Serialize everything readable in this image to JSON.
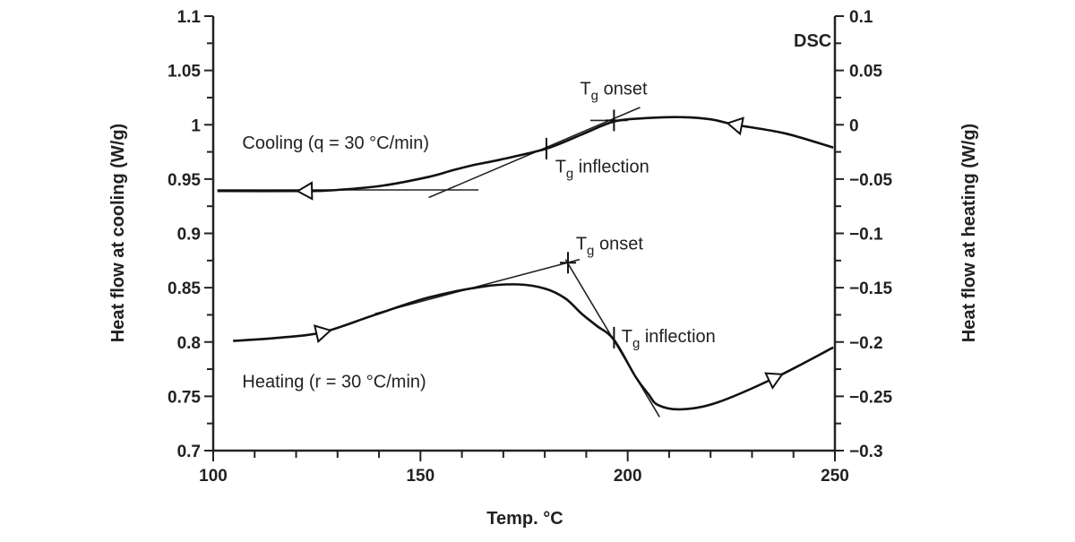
{
  "chart_data": {
    "type": "line",
    "title": "DSC",
    "xlabel": "Temp. °C",
    "ylabel_left": "Heat flow at cooling (W/g)",
    "ylabel_right": "Heat flow at heating (W/g)",
    "xlim": [
      100,
      250
    ],
    "ylim_left": [
      0.7,
      1.1
    ],
    "ylim_right": [
      -0.3,
      0.1
    ],
    "x_ticks": [
      "100",
      "150",
      "200",
      "250"
    ],
    "y_left_ticks": [
      "0.7",
      "0.75",
      "0.8",
      "0.85",
      "0.9",
      "0.95",
      "1",
      "1.05",
      "1.1"
    ],
    "y_right_ticks": [
      "−0.3",
      "−0.25",
      "−0.2",
      "−0.15",
      "−0.1",
      "−0.05",
      "0",
      "0.05",
      "0.1"
    ],
    "grid": false,
    "series": [
      {
        "name": "Cooling (q = 30 °C/min)",
        "axis": "left",
        "direction": "left",
        "x": [
          101,
          122,
          130,
          141,
          152,
          157.7,
          162.9,
          169.4,
          180.4,
          188.9,
          196.7,
          204,
          212.7,
          220,
          226,
          238,
          249.6
        ],
        "y": [
          0.939,
          0.939,
          0.94,
          0.944,
          0.952,
          0.958,
          0.963,
          0.968,
          0.978,
          0.991,
          1.003,
          1.006,
          1.007,
          1.005,
          1.0,
          0.992,
          0.979
        ],
        "arrows_at": [
          122.3,
          226
        ]
      },
      {
        "name": "Heating (r = 30 °C/min)",
        "axis": "left",
        "direction": "right",
        "x": [
          104.8,
          116,
          126.4,
          139,
          152,
          165,
          173.7,
          180.2,
          185,
          188.9,
          192.5,
          196.7,
          201.9,
          205,
          207.3,
          212.7,
          221.4,
          235.5,
          249.6
        ],
        "y": [
          0.801,
          0.804,
          0.809,
          0.825,
          0.841,
          0.851,
          0.853,
          0.849,
          0.84,
          0.826,
          0.815,
          0.802,
          0.768,
          0.752,
          0.742,
          0.738,
          0.744,
          0.767,
          0.795
        ],
        "arrows_at": [
          126.4,
          235.5
        ]
      }
    ],
    "tangents": [
      {
        "x": [
          101,
          164
        ],
        "y": [
          0.94,
          0.94
        ]
      },
      {
        "x": [
          152,
          203
        ],
        "y": [
          0.933,
          1.016
        ]
      },
      {
        "x": [
          191,
          200
        ],
        "y": [
          1.004,
          1.004
        ]
      },
      {
        "x": [
          139,
          188.4
        ],
        "y": [
          0.826,
          0.876
        ]
      },
      {
        "x": [
          185,
          207.7
        ],
        "y": [
          0.876,
          0.731
        ]
      }
    ],
    "markers": [
      {
        "x": 196.7,
        "y": 1.004,
        "type": "cross"
      },
      {
        "x": 180.4,
        "y": 0.978,
        "type": "tick"
      },
      {
        "x": 185.6,
        "y": 0.873,
        "type": "cross"
      },
      {
        "x": 196.7,
        "y": 0.804,
        "type": "tick"
      }
    ],
    "annotations": [
      {
        "text": "Cooling (q = 30 °C/min)",
        "x": 107,
        "y": 0.978
      },
      {
        "text": "Heating (r = 30 °C/min)",
        "x": 107,
        "y": 0.758
      },
      {
        "text": "T",
        "sub": "g",
        "rest": " onset",
        "x": 188.5,
        "y": 1.028
      },
      {
        "text": "T",
        "sub": "g",
        "rest": " inflection",
        "x": 182.5,
        "y": 0.956
      },
      {
        "text": "T",
        "sub": "g",
        "rest": " onset",
        "x": 187.5,
        "y": 0.885
      },
      {
        "text": "T",
        "sub": "g",
        "rest": " inflection",
        "x": 198.5,
        "y": 0.8
      }
    ]
  }
}
